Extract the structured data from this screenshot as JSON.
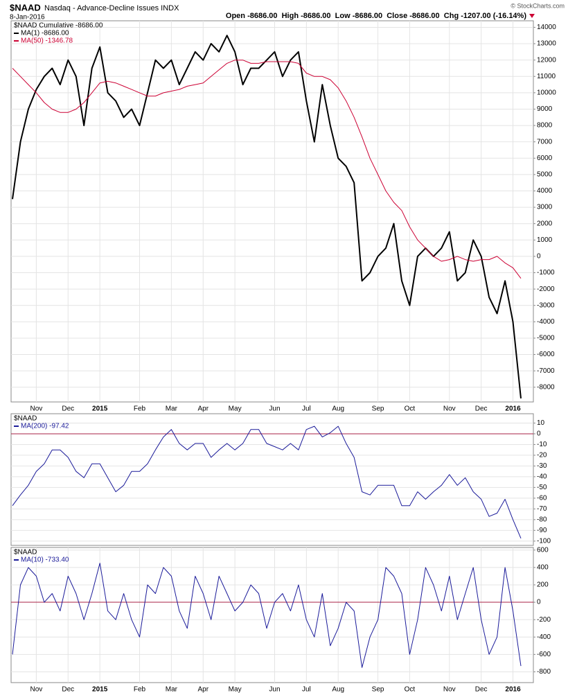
{
  "chart_data": [
    {
      "type": "line",
      "title": "$NAAD",
      "subtitle": "Nasdaq - Advance-Decline Issues INDX",
      "date": "8-Jan-2016",
      "quote": "Open -8686.00  High -8686.00  Low -8686.00  Close -8686.00  Chg -1207.00 (-16.14%)",
      "credit": "© StockCharts.com",
      "label": "$NAAD Cumulative -8686.00",
      "categories": [
        null,
        null,
        null,
        "Nov",
        null,
        null,
        null,
        "Dec",
        null,
        null,
        null,
        "2015",
        null,
        null,
        null,
        null,
        "Feb",
        null,
        null,
        null,
        "Mar",
        null,
        null,
        null,
        "Apr",
        null,
        null,
        null,
        "May",
        null,
        null,
        null,
        null,
        "Jun",
        null,
        null,
        null,
        "Jul",
        null,
        null,
        null,
        "Aug",
        null,
        null,
        null,
        null,
        "Sep",
        null,
        null,
        null,
        "Oct",
        null,
        null,
        null,
        null,
        "Nov",
        null,
        null,
        null,
        "Dec",
        null,
        null,
        null,
        "2016",
        null
      ],
      "ylim": [
        -8900,
        14400
      ],
      "yticks": [
        14000,
        13000,
        12000,
        11000,
        10000,
        9000,
        8000,
        7000,
        6000,
        5000,
        4000,
        3000,
        2000,
        1000,
        0,
        -1000,
        -2000,
        -3000,
        -4000,
        -5000,
        -6000,
        -7000,
        -8000
      ],
      "grid": true,
      "zero_line": false,
      "series": [
        {
          "name": "MA(1) -8686.00",
          "color": "#000000",
          "width": 2,
          "values": [
            3500,
            7000,
            9000,
            10200,
            11000,
            11500,
            10500,
            12000,
            11000,
            8000,
            11500,
            12800,
            10000,
            9500,
            8500,
            9000,
            8000,
            10000,
            12000,
            11500,
            12000,
            10500,
            11500,
            12500,
            12000,
            13000,
            12500,
            13500,
            12500,
            10500,
            11500,
            11500,
            12000,
            12500,
            11000,
            12000,
            12500,
            9500,
            7000,
            10500,
            8000,
            6000,
            5500,
            4500,
            -1500,
            -1000,
            0,
            500,
            2000,
            -1500,
            -3000,
            0,
            500,
            0,
            500,
            1500,
            -1500,
            -1000,
            1000,
            0,
            -2500,
            -3500,
            -1500,
            -4000,
            -8686
          ]
        },
        {
          "name": "MA(50) -1346.78",
          "color": "#cc0033",
          "width": 1,
          "values": [
            11500,
            11000,
            10500,
            10000,
            9400,
            9000,
            8800,
            8800,
            9000,
            9400,
            10000,
            10600,
            10700,
            10600,
            10400,
            10200,
            10000,
            9800,
            9800,
            10000,
            10100,
            10200,
            10400,
            10500,
            10600,
            11000,
            11400,
            11800,
            12000,
            12000,
            11800,
            11800,
            11900,
            11900,
            11900,
            11900,
            11800,
            11200,
            11000,
            11000,
            10800,
            10300,
            9500,
            8500,
            7300,
            6000,
            5000,
            4000,
            3300,
            2800,
            1800,
            1000,
            500,
            0,
            -300,
            -200,
            0,
            -200,
            -300,
            -200,
            -200,
            0,
            -400,
            -700,
            -1346.78
          ]
        }
      ]
    },
    {
      "type": "line",
      "label": "$NAAD",
      "ylim": [
        -104,
        18.7
      ],
      "yticks": [
        10,
        0,
        -10,
        -20,
        -30,
        -40,
        -50,
        -60,
        -70,
        -80,
        -90,
        -100
      ],
      "grid": true,
      "zero_line": true,
      "series": [
        {
          "name": "MA(200) -97.42",
          "color": "#1a1a99",
          "width": 1,
          "values": [
            -67,
            -57,
            -48,
            -35,
            -28,
            -15,
            -15,
            -22,
            -35,
            -41,
            -28,
            -28,
            -41,
            -54,
            -48,
            -35,
            -35,
            -28,
            -15,
            -3,
            4,
            -9,
            -15,
            -9,
            -9,
            -22,
            -15,
            -9,
            -15,
            -9,
            4,
            4,
            -9,
            -12,
            -15,
            -9,
            -15,
            4,
            7,
            -3,
            1,
            7,
            -9,
            -22,
            -54,
            -57,
            -48,
            -48,
            -48,
            -67,
            -67,
            -54,
            -61,
            -54,
            -48,
            -38,
            -48,
            -41,
            -54,
            -61,
            -77,
            -74,
            -61,
            -80,
            -97.42
          ]
        }
      ]
    },
    {
      "type": "line",
      "label": "$NAAD",
      "categories": [
        null,
        null,
        null,
        "Nov",
        null,
        null,
        null,
        "Dec",
        null,
        null,
        null,
        "2015",
        null,
        null,
        null,
        null,
        "Feb",
        null,
        null,
        null,
        "Mar",
        null,
        null,
        null,
        "Apr",
        null,
        null,
        null,
        "May",
        null,
        null,
        null,
        null,
        "Jun",
        null,
        null,
        null,
        "Jul",
        null,
        null,
        null,
        "Aug",
        null,
        null,
        null,
        null,
        "Sep",
        null,
        null,
        null,
        "Oct",
        null,
        null,
        null,
        null,
        "Nov",
        null,
        null,
        null,
        "Dec",
        null,
        null,
        null,
        "2016",
        null
      ],
      "ylim": [
        -924,
        630
      ],
      "yticks": [
        600,
        400,
        200,
        0,
        -200,
        -400,
        -600,
        -800
      ],
      "grid": true,
      "zero_line": true,
      "series": [
        {
          "name": "MA(10) -733.40",
          "color": "#1a1a99",
          "width": 1,
          "values": [
            -600,
            200,
            400,
            300,
            0,
            100,
            -100,
            300,
            100,
            -200,
            100,
            450,
            -100,
            -200,
            100,
            -200,
            -400,
            200,
            100,
            400,
            300,
            -100,
            -300,
            300,
            100,
            -200,
            300,
            100,
            -100,
            0,
            200,
            100,
            -300,
            0,
            100,
            -100,
            200,
            -200,
            -400,
            100,
            -500,
            -300,
            0,
            -100,
            -750,
            -400,
            -200,
            400,
            300,
            100,
            -600,
            -200,
            400,
            200,
            -100,
            300,
            -200,
            100,
            400,
            -200,
            -600,
            -400,
            400,
            -100,
            -733.4
          ]
        }
      ]
    }
  ]
}
